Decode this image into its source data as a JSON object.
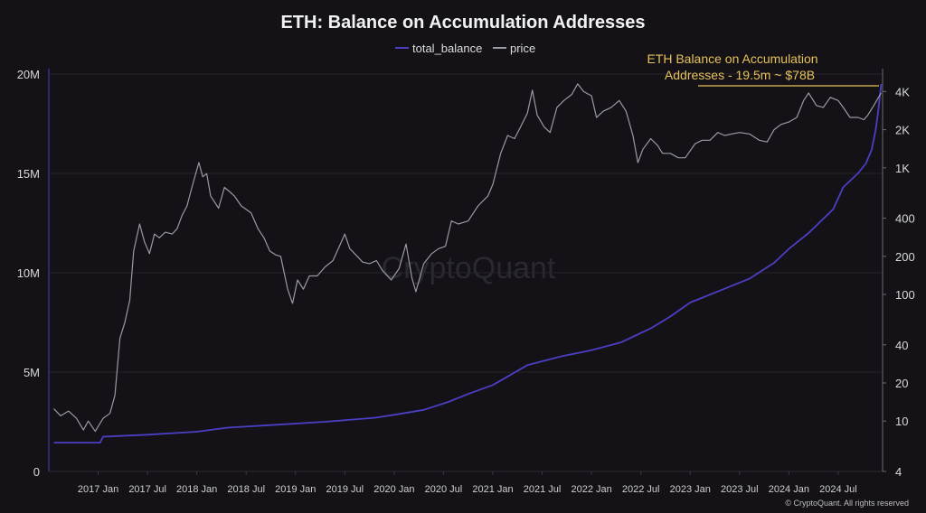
{
  "chart_data": {
    "type": "line",
    "title": "ETH: Balance on Accumulation Addresses",
    "legend": {
      "placement": "top-center",
      "entries": [
        "total_balance",
        "price"
      ]
    },
    "annotation": {
      "line1": "ETH Balance on Accumulation",
      "line2": "Addresses - 19.5m ~ $78B"
    },
    "watermark": "CryptoQuant",
    "credit": "© CryptoQuant. All rights reserved",
    "x_range": [
      2016.5,
      2024.95
    ],
    "x_ticks": [
      {
        "label": "2017 Jan",
        "t": 2017.0
      },
      {
        "label": "2017 Jul",
        "t": 2017.5
      },
      {
        "label": "2018 Jan",
        "t": 2018.0
      },
      {
        "label": "2018 Jul",
        "t": 2018.5
      },
      {
        "label": "2019 Jan",
        "t": 2019.0
      },
      {
        "label": "2019 Jul",
        "t": 2019.5
      },
      {
        "label": "2020 Jan",
        "t": 2020.0
      },
      {
        "label": "2020 Jul",
        "t": 2020.5
      },
      {
        "label": "2021 Jan",
        "t": 2021.0
      },
      {
        "label": "2021 Jul",
        "t": 2021.5
      },
      {
        "label": "2022 Jan",
        "t": 2022.0
      },
      {
        "label": "2022 Jul",
        "t": 2022.5
      },
      {
        "label": "2023 Jan",
        "t": 2023.0
      },
      {
        "label": "2023 Jul",
        "t": 2023.5
      },
      {
        "label": "2024 Jan",
        "t": 2024.0
      },
      {
        "label": "2024 Jul",
        "t": 2024.5
      }
    ],
    "y_left": {
      "range": [
        0,
        20000000
      ],
      "ticks": [
        {
          "label": "0",
          "v": 0
        },
        {
          "label": "5M",
          "v": 5000000
        },
        {
          "label": "10M",
          "v": 10000000
        },
        {
          "label": "15M",
          "v": 15000000
        },
        {
          "label": "20M",
          "v": 20000000
        }
      ]
    },
    "y_right": {
      "scale": "log",
      "range": [
        4,
        5500
      ],
      "ticks": [
        {
          "label": "4",
          "v": 4
        },
        {
          "label": "10",
          "v": 10
        },
        {
          "label": "20",
          "v": 20
        },
        {
          "label": "40",
          "v": 40
        },
        {
          "label": "100",
          "v": 100
        },
        {
          "label": "200",
          "v": 200
        },
        {
          "label": "400",
          "v": 400
        },
        {
          "label": "1K",
          "v": 1000
        },
        {
          "label": "2K",
          "v": 2000
        },
        {
          "label": "4K",
          "v": 4000
        }
      ]
    },
    "series": [
      {
        "name": "total_balance",
        "axis": "left",
        "color": "#4b3fc4",
        "points": [
          [
            2016.55,
            1450000
          ],
          [
            2016.9,
            1450000
          ],
          [
            2017.02,
            1450000
          ],
          [
            2017.05,
            1750000
          ],
          [
            2017.5,
            1850000
          ],
          [
            2018.0,
            2000000
          ],
          [
            2018.3,
            2200000
          ],
          [
            2018.8,
            2350000
          ],
          [
            2019.3,
            2500000
          ],
          [
            2019.8,
            2700000
          ],
          [
            2020.0,
            2850000
          ],
          [
            2020.3,
            3100000
          ],
          [
            2020.55,
            3500000
          ],
          [
            2020.75,
            3900000
          ],
          [
            2021.0,
            4350000
          ],
          [
            2021.35,
            5350000
          ],
          [
            2021.7,
            5800000
          ],
          [
            2022.0,
            6100000
          ],
          [
            2022.3,
            6500000
          ],
          [
            2022.6,
            7200000
          ],
          [
            2022.8,
            7800000
          ],
          [
            2023.0,
            8500000
          ],
          [
            2023.3,
            9100000
          ],
          [
            2023.6,
            9700000
          ],
          [
            2023.85,
            10500000
          ],
          [
            2024.0,
            11200000
          ],
          [
            2024.2,
            12000000
          ],
          [
            2024.45,
            13200000
          ],
          [
            2024.55,
            14300000
          ],
          [
            2024.7,
            15000000
          ],
          [
            2024.78,
            15500000
          ],
          [
            2024.84,
            16200000
          ],
          [
            2024.88,
            17200000
          ],
          [
            2024.91,
            18300000
          ],
          [
            2024.935,
            19500000
          ]
        ]
      },
      {
        "name": "price",
        "axis": "right",
        "color": "#9a9aa2",
        "points": [
          [
            2016.55,
            12.5
          ],
          [
            2016.62,
            11
          ],
          [
            2016.7,
            12
          ],
          [
            2016.78,
            10.5
          ],
          [
            2016.85,
            8.5
          ],
          [
            2016.9,
            10
          ],
          [
            2016.97,
            8.3
          ],
          [
            2017.05,
            10.5
          ],
          [
            2017.12,
            11.5
          ],
          [
            2017.17,
            16
          ],
          [
            2017.22,
            45
          ],
          [
            2017.27,
            60
          ],
          [
            2017.32,
            90
          ],
          [
            2017.36,
            220
          ],
          [
            2017.42,
            360
          ],
          [
            2017.47,
            260
          ],
          [
            2017.52,
            210
          ],
          [
            2017.57,
            300
          ],
          [
            2017.62,
            280
          ],
          [
            2017.68,
            310
          ],
          [
            2017.75,
            300
          ],
          [
            2017.8,
            330
          ],
          [
            2017.85,
            420
          ],
          [
            2017.9,
            500
          ],
          [
            2017.95,
            700
          ],
          [
            2018.02,
            1100
          ],
          [
            2018.06,
            850
          ],
          [
            2018.1,
            900
          ],
          [
            2018.14,
            600
          ],
          [
            2018.22,
            480
          ],
          [
            2018.28,
            700
          ],
          [
            2018.33,
            650
          ],
          [
            2018.38,
            600
          ],
          [
            2018.45,
            500
          ],
          [
            2018.55,
            440
          ],
          [
            2018.62,
            330
          ],
          [
            2018.68,
            280
          ],
          [
            2018.74,
            220
          ],
          [
            2018.8,
            205
          ],
          [
            2018.85,
            200
          ],
          [
            2018.92,
            110
          ],
          [
            2018.97,
            85
          ],
          [
            2019.02,
            130
          ],
          [
            2019.08,
            110
          ],
          [
            2019.14,
            140
          ],
          [
            2019.22,
            140
          ],
          [
            2019.3,
            165
          ],
          [
            2019.38,
            185
          ],
          [
            2019.45,
            245
          ],
          [
            2019.5,
            300
          ],
          [
            2019.55,
            230
          ],
          [
            2019.6,
            210
          ],
          [
            2019.68,
            180
          ],
          [
            2019.75,
            175
          ],
          [
            2019.82,
            185
          ],
          [
            2019.88,
            155
          ],
          [
            2019.97,
            130
          ],
          [
            2020.05,
            160
          ],
          [
            2020.12,
            250
          ],
          [
            2020.18,
            135
          ],
          [
            2020.22,
            105
          ],
          [
            2020.3,
            175
          ],
          [
            2020.38,
            210
          ],
          [
            2020.45,
            230
          ],
          [
            2020.52,
            240
          ],
          [
            2020.58,
            380
          ],
          [
            2020.65,
            360
          ],
          [
            2020.75,
            380
          ],
          [
            2020.85,
            500
          ],
          [
            2020.95,
            600
          ],
          [
            2021.0,
            740
          ],
          [
            2021.08,
            1300
          ],
          [
            2021.15,
            1800
          ],
          [
            2021.22,
            1700
          ],
          [
            2021.28,
            2100
          ],
          [
            2021.35,
            2700
          ],
          [
            2021.4,
            4100
          ],
          [
            2021.45,
            2600
          ],
          [
            2021.52,
            2100
          ],
          [
            2021.58,
            1900
          ],
          [
            2021.65,
            3000
          ],
          [
            2021.72,
            3400
          ],
          [
            2021.8,
            3800
          ],
          [
            2021.86,
            4600
          ],
          [
            2021.92,
            4000
          ],
          [
            2022.0,
            3700
          ],
          [
            2022.05,
            2500
          ],
          [
            2022.12,
            2800
          ],
          [
            2022.2,
            3000
          ],
          [
            2022.28,
            3400
          ],
          [
            2022.35,
            2800
          ],
          [
            2022.42,
            1800
          ],
          [
            2022.47,
            1100
          ],
          [
            2022.52,
            1400
          ],
          [
            2022.6,
            1700
          ],
          [
            2022.67,
            1500
          ],
          [
            2022.72,
            1300
          ],
          [
            2022.8,
            1300
          ],
          [
            2022.88,
            1200
          ],
          [
            2022.95,
            1200
          ],
          [
            2023.05,
            1550
          ],
          [
            2023.12,
            1650
          ],
          [
            2023.2,
            1650
          ],
          [
            2023.28,
            1900
          ],
          [
            2023.35,
            1800
          ],
          [
            2023.42,
            1850
          ],
          [
            2023.5,
            1900
          ],
          [
            2023.6,
            1850
          ],
          [
            2023.7,
            1650
          ],
          [
            2023.78,
            1600
          ],
          [
            2023.85,
            2000
          ],
          [
            2023.92,
            2200
          ],
          [
            2024.0,
            2300
          ],
          [
            2024.08,
            2500
          ],
          [
            2024.15,
            3400
          ],
          [
            2024.2,
            3900
          ],
          [
            2024.28,
            3100
          ],
          [
            2024.35,
            3000
          ],
          [
            2024.42,
            3600
          ],
          [
            2024.5,
            3400
          ],
          [
            2024.55,
            3000
          ],
          [
            2024.62,
            2500
          ],
          [
            2024.7,
            2500
          ],
          [
            2024.76,
            2400
          ],
          [
            2024.8,
            2600
          ],
          [
            2024.86,
            3100
          ],
          [
            2024.9,
            3500
          ],
          [
            2024.935,
            3900
          ]
        ]
      }
    ]
  }
}
